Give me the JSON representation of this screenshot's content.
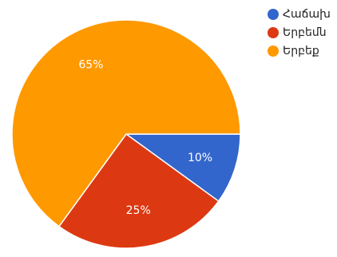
{
  "chart_data": {
    "type": "pie",
    "title": "",
    "legend_position": "top-right",
    "slices": [
      {
        "label": "Հաճախ",
        "value": 10,
        "percent_label": "10%",
        "color": "#3366cc"
      },
      {
        "label": "Երբեմն",
        "value": 25,
        "percent_label": "25%",
        "color": "#dc3912"
      },
      {
        "label": "Երբեք",
        "value": 65,
        "percent_label": "65%",
        "color": "#ff9900"
      }
    ],
    "start_angle_deg": 0,
    "direction": "clockwise"
  }
}
